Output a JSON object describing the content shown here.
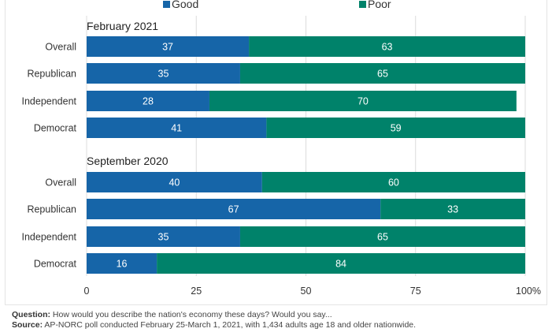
{
  "chart_data": {
    "type": "bar",
    "orientation": "horizontal",
    "stacked": true,
    "legend": {
      "placement": "top",
      "items": [
        {
          "name": "Good",
          "color": "#1665a8"
        },
        {
          "name": "Poor",
          "color": "#00826a"
        }
      ]
    },
    "groups": [
      {
        "title": "February 2021",
        "categories": [
          "Overall",
          "Republican",
          "Independent",
          "Democrat"
        ],
        "series": [
          {
            "name": "Good",
            "values": [
              37,
              35,
              28,
              41
            ]
          },
          {
            "name": "Poor",
            "values": [
              63,
              65,
              70,
              59
            ]
          }
        ]
      },
      {
        "title": "September 2020",
        "categories": [
          "Overall",
          "Republican",
          "Independent",
          "Democrat"
        ],
        "series": [
          {
            "name": "Good",
            "values": [
              40,
              67,
              35,
              16
            ]
          },
          {
            "name": "Poor",
            "values": [
              60,
              33,
              65,
              84
            ]
          }
        ]
      }
    ],
    "xlim": [
      0,
      100
    ],
    "xticks": [
      "0",
      "25",
      "50",
      "75",
      "100%"
    ],
    "grid": true
  },
  "footer": {
    "question_label": "Question:",
    "question_text": " How would you describe the nation's economy these days? Would you say...",
    "source_label": "Source:",
    "source_text": " AP-NORC poll conducted February 25-March 1, 2021, with 1,434 adults age 18 and older nationwide."
  }
}
